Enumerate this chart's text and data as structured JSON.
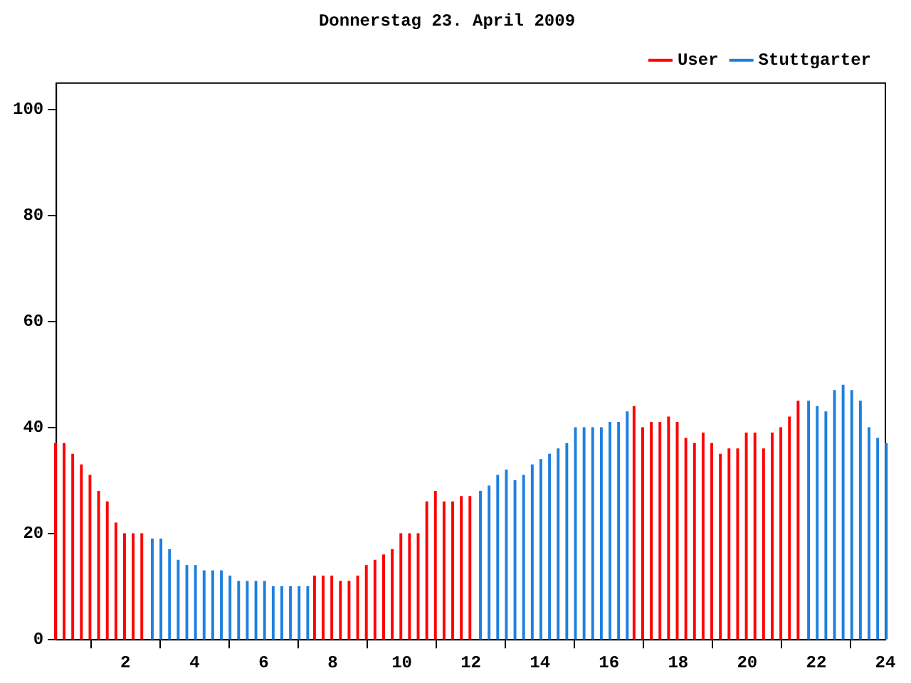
{
  "chart_data": {
    "type": "bar",
    "title": "Donnerstag 23. April 2009",
    "series": [
      {
        "name": "User",
        "color": "#ff0000",
        "x": [
          0,
          0.25,
          0.5,
          0.75,
          1,
          1.25,
          1.5,
          1.75,
          2,
          2.25,
          2.5,
          7.5,
          7.75,
          8,
          8.25,
          8.5,
          8.75,
          9,
          9.25,
          9.5,
          9.75,
          10,
          10.25,
          10.5,
          10.75,
          11,
          11.25,
          11.5,
          11.75,
          12,
          16.75,
          17,
          17.25,
          17.5,
          17.75,
          18,
          18.25,
          18.5,
          18.75,
          19,
          19.25,
          19.5,
          19.75,
          20,
          20.25,
          20.5,
          20.75,
          21,
          21.25,
          21.5
        ],
        "values": [
          37,
          37,
          35,
          33,
          31,
          28,
          26,
          22,
          20,
          20,
          20,
          12,
          12,
          12,
          11,
          11,
          12,
          14,
          15,
          16,
          17,
          20,
          20,
          20,
          26,
          28,
          26,
          26,
          27,
          27,
          44,
          40,
          41,
          41,
          42,
          41,
          38,
          37,
          39,
          37,
          35,
          36,
          36,
          39,
          39,
          36,
          39,
          40,
          42,
          45
        ]
      },
      {
        "name": "Stuttgarter",
        "color": "#1e7fe0",
        "x": [
          2.75,
          3,
          3.25,
          3.5,
          3.75,
          4,
          4.25,
          4.5,
          4.75,
          5,
          5.25,
          5.5,
          5.75,
          6,
          6.25,
          6.5,
          6.75,
          7,
          7.25,
          12.25,
          12.5,
          12.75,
          13,
          13.25,
          13.5,
          13.75,
          14,
          14.25,
          14.5,
          14.75,
          15,
          15.25,
          15.5,
          15.75,
          16,
          16.25,
          16.5,
          21.75,
          22,
          22.25,
          22.5,
          22.75,
          23,
          23.25,
          23.5,
          23.75,
          24
        ],
        "values": [
          19,
          19,
          17,
          15,
          14,
          14,
          13,
          13,
          13,
          12,
          11,
          11,
          11,
          11,
          10,
          10,
          10,
          10,
          10,
          28,
          29,
          31,
          32,
          30,
          31,
          33,
          34,
          35,
          36,
          37,
          40,
          40,
          40,
          40,
          41,
          41,
          43,
          45,
          44,
          43,
          47,
          48,
          47,
          45,
          40,
          38,
          37
        ]
      }
    ],
    "xlim": [
      0,
      24
    ],
    "xticks": [
      {
        "value": 0,
        "label": null
      },
      2,
      4,
      6,
      8,
      10,
      12,
      14,
      16,
      18,
      20,
      22,
      24
    ],
    "ylim": [
      0,
      105
    ],
    "yticks": [
      0,
      20,
      40,
      60,
      80,
      100
    ],
    "grid": false,
    "legend": "top right"
  }
}
